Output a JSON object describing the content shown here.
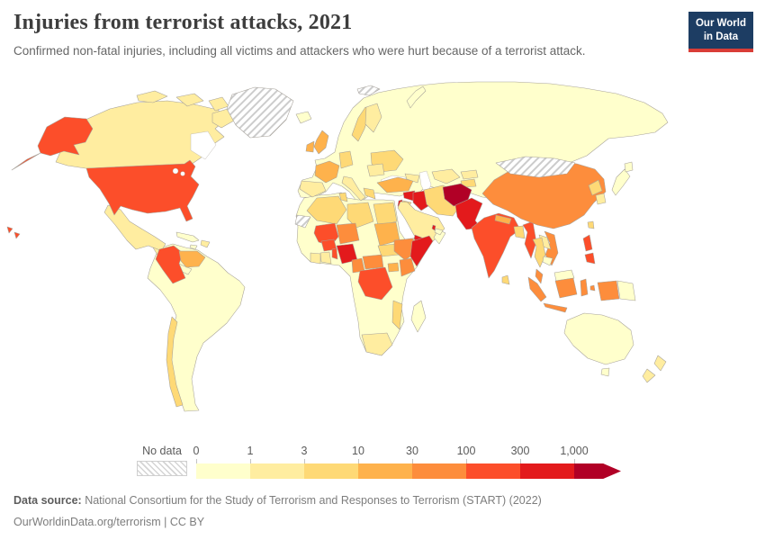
{
  "header": {
    "title": "Injuries from terrorist attacks, 2021",
    "subtitle": "Confirmed non-fatal injuries, including all victims and attackers who were hurt because of a terrorist attack."
  },
  "logo": {
    "line1": "Our World",
    "line2": "in Data",
    "bg_color": "#1d3d63",
    "accent_color": "#d93d37"
  },
  "footer": {
    "source_label": "Data source:",
    "source_text": " National Consortium for the Study of Terrorism and Responses to Terrorism (START) (2022)",
    "link_text": "OurWorldinData.org/terrorism | CC BY"
  },
  "chart_data": {
    "type": "choropleth_map",
    "title": "Injuries from terrorist attacks, 2021",
    "unit": "injuries",
    "legend": {
      "no_data_label": "No data",
      "tick_labels": [
        "0",
        "1",
        "3",
        "10",
        "30",
        "100",
        "300",
        "1,000"
      ],
      "bins": [
        "0-1",
        "1-3",
        "3-10",
        "10-30",
        "30-100",
        "100-300",
        "300-1000",
        "1000+"
      ]
    },
    "palette": {
      "0-1": "#FFFFCC",
      "1-3": "#FFEDA0",
      "3-10": "#FED976",
      "10-30": "#FEB24C",
      "30-100": "#FD8D3C",
      "100-300": "#FC4E2A",
      "300-1000": "#E31A1C",
      "1000+": "#B10026",
      "no-data": "hatch"
    },
    "regions": {
      "eurasia-base": "0-1",
      "africa-base": "0-1",
      "south-america-base": "0-1",
      "canada": "1-3",
      "usa": "100-300",
      "mexico": "1-3",
      "central-america-north": "1-3",
      "central-america-south": "0-1",
      "cuba": "0-1",
      "hispaniola": "1-3",
      "jamaica": "0-1",
      "greenland": "no-data",
      "svalbard": "no-data",
      "iceland": "0-1",
      "novaya-zemlya": "0-1",
      "colombia": "100-300",
      "venezuela": "10-30",
      "chile": "3-10",
      "uk": "10-30",
      "ireland": "10-30",
      "france": "10-30",
      "spain": "1-3",
      "germany": "3-10",
      "sweden": "3-10",
      "finland": "1-3",
      "italy": "1-3",
      "greece": "3-10",
      "ukraine": "3-10",
      "romania": "1-3",
      "turkey": "10-30",
      "caucasus": "1-3",
      "syria": "300-1000",
      "israel": "300-1000",
      "jordan": "3-10",
      "iraq": "300-1000",
      "iran": "3-10",
      "saudi-arabia": "1-3",
      "yemen": "300-1000",
      "oman": "0-1",
      "qatar": "300-1000",
      "uae": "0-1",
      "uzbekistan": "1-3",
      "kyrgyzstan": "1-3",
      "tajikistan": "3-10",
      "afghanistan": "1000+",
      "pakistan": "300-1000",
      "india": "100-300",
      "nepal": "10-30",
      "bangladesh": "3-10",
      "sri-lanka": "3-10",
      "myanmar": "100-300",
      "china": "30-100",
      "mongolia": "no-data",
      "north-korea": "3-10",
      "south-korea": "1-3",
      "japan": "0-1",
      "taiwan": "3-10",
      "vietnam": "30-100",
      "laos": "1-3",
      "thailand": "3-10",
      "cambodia": "0-1",
      "malaysia-peninsula": "30-100",
      "malaysia-borneo": "0-1",
      "indonesia": "30-100",
      "papua-new-guinea": "0-1",
      "philippines": "100-300",
      "australia": "0-1",
      "new-zealand": "1-3",
      "western-sahara": "no-data",
      "algeria": "3-10",
      "tunisia": "3-10",
      "libya": "3-10",
      "egypt": "3-10",
      "mali": "100-300",
      "burkina-faso": "100-300",
      "niger": "30-100",
      "nigeria": "300-1000",
      "benin": "100-300",
      "ghana": "1-3",
      "ivory-coast": "1-3",
      "sudan": "10-30",
      "south-sudan": "3-10",
      "djibouti": "3-10",
      "ethiopia": "30-100",
      "somalia": "300-1000",
      "cameroon": "30-100",
      "central-african-republic": "30-100",
      "dr-congo": "100-300",
      "uganda": "10-30",
      "kenya": "30-100",
      "mozambique": "3-10",
      "south-africa": "1-3",
      "madagascar": "0-1"
    }
  }
}
